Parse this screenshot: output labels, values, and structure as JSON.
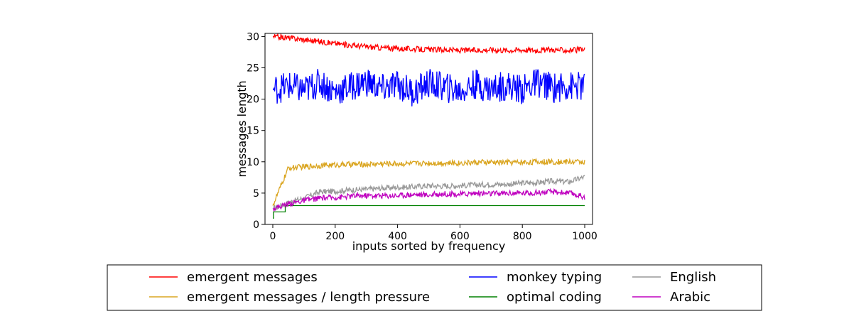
{
  "chart_data": {
    "type": "line",
    "title": "",
    "xlabel": "inputs sorted by frequency",
    "ylabel": "messages length",
    "xlim": [
      -25,
      1025
    ],
    "ylim": [
      0,
      30.5
    ],
    "xticks": [
      0,
      200,
      400,
      600,
      800,
      1000
    ],
    "yticks": [
      0,
      5,
      10,
      15,
      20,
      25,
      30
    ],
    "grid": false,
    "legend_position": "below",
    "x": [
      0,
      50,
      100,
      150,
      200,
      250,
      300,
      350,
      400,
      450,
      500,
      550,
      600,
      650,
      700,
      750,
      800,
      850,
      900,
      950,
      1000
    ],
    "series": [
      {
        "name": "emergent messages",
        "color": "#ff0000",
        "values": [
          30,
          29.8,
          29.5,
          29.2,
          28.9,
          28.6,
          28.4,
          28.2,
          28.1,
          28.0,
          27.9,
          27.9,
          27.8,
          27.8,
          27.9,
          27.8,
          27.9,
          27.8,
          27.9,
          27.8,
          27.9
        ]
      },
      {
        "name": "emergent messages / length pressure",
        "color": "#daa520",
        "values": [
          3.0,
          9.0,
          9.2,
          9.4,
          9.5,
          9.6,
          9.6,
          9.7,
          9.7,
          9.7,
          9.8,
          9.8,
          9.8,
          9.9,
          9.9,
          9.9,
          9.9,
          10.0,
          10.0,
          10.0,
          10.0
        ]
      },
      {
        "name": "monkey typing",
        "color": "#0000ff",
        "values": [
          21.5,
          22.1,
          21.4,
          22.6,
          21.2,
          22.0,
          22.8,
          21.6,
          22.3,
          21.1,
          22.5,
          21.9,
          21.3,
          22.4,
          21.7,
          22.2,
          21.5,
          22.7,
          21.8,
          22.1,
          22.0
        ]
      },
      {
        "name": "optimal coding",
        "color": "#008000",
        "values": [
          1,
          2,
          3,
          3,
          3,
          3,
          3,
          3,
          3,
          3,
          3,
          3,
          3,
          3,
          3,
          3,
          3,
          3,
          3,
          3,
          3
        ]
      },
      {
        "name": "English",
        "color": "#999999",
        "values": [
          2.5,
          3.5,
          4.2,
          5.2,
          5.3,
          5.5,
          5.6,
          5.8,
          5.9,
          6.0,
          6.2,
          6.1,
          6.2,
          6.3,
          6.4,
          6.4,
          6.6,
          6.7,
          6.9,
          6.8,
          7.6
        ]
      },
      {
        "name": "Arabic",
        "color": "#bf00bf",
        "values": [
          2.5,
          3.3,
          3.8,
          4.2,
          4.3,
          4.5,
          4.6,
          4.6,
          4.6,
          4.8,
          4.7,
          4.9,
          4.8,
          5.0,
          4.9,
          5.0,
          5.0,
          5.1,
          5.2,
          5.0,
          4.4
        ]
      }
    ],
    "legend_layout": [
      [
        "emergent messages",
        "emergent messages / length pressure"
      ],
      [
        "monkey typing",
        "optimal coding"
      ],
      [
        "English",
        "Arabic"
      ]
    ]
  }
}
